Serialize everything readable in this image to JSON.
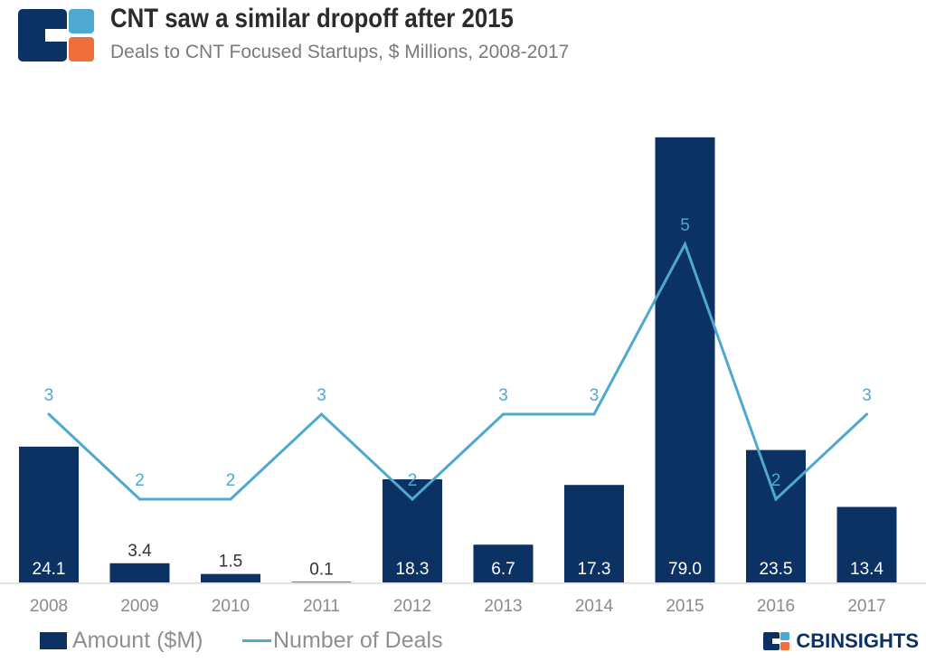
{
  "header": {
    "title": "CNT saw a similar dropoff after 2015",
    "subtitle": "Deals to CNT Focused Startups, $ Millions, 2008-2017"
  },
  "colors": {
    "bar": "#0c3263",
    "line": "#4fa8cf",
    "logo_dark": "#0c3263",
    "logo_light": "#4fa8cf",
    "logo_accent": "#ef6e3c",
    "axis_text": "#8a8a8a"
  },
  "legend": {
    "bar_label": "Amount ($M)",
    "line_label": "Number of Deals",
    "position": "bottom-left"
  },
  "brand": {
    "text": "CBINSIGHTS",
    "icon": "cb-insights-logo-icon"
  },
  "chart_data": {
    "type": "bar",
    "title": "CNT saw a similar dropoff after 2015",
    "subtitle": "Deals to CNT Focused Startups, $ Millions, 2008-2017",
    "xlabel": "",
    "ylabel": "",
    "categories": [
      "2008",
      "2009",
      "2010",
      "2011",
      "2012",
      "2013",
      "2014",
      "2015",
      "2016",
      "2017"
    ],
    "grid": false,
    "series": [
      {
        "name": "Amount ($M)",
        "type": "bar",
        "values": [
          24.1,
          3.4,
          1.5,
          0.1,
          18.3,
          6.7,
          17.3,
          79.0,
          23.5,
          13.4
        ],
        "labels": [
          "24.1",
          "3.4",
          "1.5",
          "0.1",
          "18.3",
          "6.7",
          "17.3",
          "79.0",
          "23.5",
          "13.4"
        ]
      },
      {
        "name": "Number of Deals",
        "type": "line",
        "values": [
          3,
          2,
          2,
          3,
          2,
          3,
          3,
          5,
          2,
          3
        ],
        "labels": [
          "3",
          "2",
          "2",
          "3",
          "2",
          "3",
          "3",
          "5",
          "2",
          "3"
        ]
      }
    ]
  }
}
